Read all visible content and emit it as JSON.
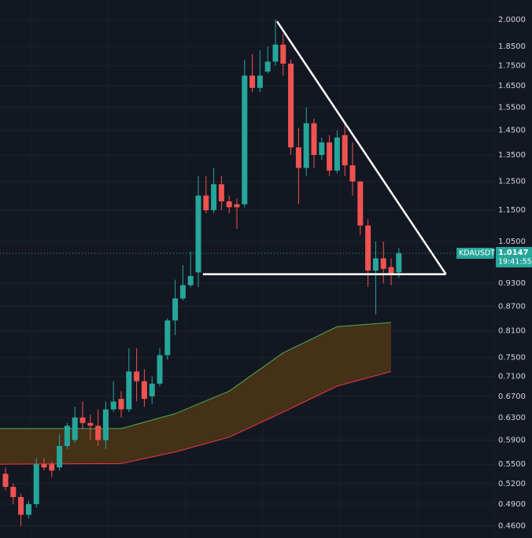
{
  "chart_data": {
    "type": "candlestick",
    "symbol": "KDAUSDT",
    "last_price": 1.0147,
    "countdown": "19:41:55",
    "log_scale": true,
    "grid": true,
    "up_color": "#26a69a",
    "down_color": "#ef5350",
    "ylim": [
      0.444,
      2.117
    ],
    "yticks": [
      {
        "value": 2.0,
        "label": "2.0000"
      },
      {
        "value": 1.85,
        "label": "1.8500"
      },
      {
        "value": 1.75,
        "label": "1.7500"
      },
      {
        "value": 1.65,
        "label": "1.6500"
      },
      {
        "value": 1.55,
        "label": "1.5500"
      },
      {
        "value": 1.45,
        "label": "1.4500"
      },
      {
        "value": 1.35,
        "label": "1.3500"
      },
      {
        "value": 1.25,
        "label": "1.2500"
      },
      {
        "value": 1.15,
        "label": "1.1500"
      },
      {
        "value": 1.05,
        "label": "1.0500"
      },
      {
        "value": 0.93,
        "label": "0.9300"
      },
      {
        "value": 0.87,
        "label": "0.8700"
      },
      {
        "value": 0.81,
        "label": "0.8100"
      },
      {
        "value": 0.75,
        "label": "0.7500"
      },
      {
        "value": 0.71,
        "label": "0.7100"
      },
      {
        "value": 0.67,
        "label": "0.6700"
      },
      {
        "value": 0.63,
        "label": "0.6300"
      },
      {
        "value": 0.59,
        "label": "0.5900"
      },
      {
        "value": 0.55,
        "label": "0.5500"
      },
      {
        "value": 0.52,
        "label": "0.5200"
      },
      {
        "value": 0.49,
        "label": "0.4900"
      },
      {
        "value": 0.46,
        "label": "0.4600"
      }
    ],
    "candles": {
      "open": [
        0.535,
        0.515,
        0.5,
        0.475,
        0.49,
        0.55,
        0.55,
        0.545,
        0.58,
        0.59,
        0.63,
        0.62,
        0.615,
        0.59,
        0.645,
        0.665,
        0.645,
        0.72,
        0.7,
        0.67,
        0.695,
        0.755,
        0.835,
        0.89,
        0.925,
        0.96,
        1.2,
        1.15,
        1.24,
        1.18,
        1.17,
        1.17,
        1.7,
        1.64,
        1.72,
        1.77,
        1.86,
        1.76,
        1.38,
        1.3,
        1.48,
        1.35,
        1.4,
        1.29,
        1.43,
        1.31,
        1.25,
        1.1,
        0.965,
        1.0,
        0.975,
        0.96
      ],
      "high": [
        0.545,
        0.52,
        0.505,
        0.495,
        0.56,
        0.56,
        0.555,
        0.6,
        0.62,
        0.65,
        0.66,
        0.635,
        0.645,
        0.66,
        0.7,
        0.68,
        0.77,
        0.77,
        0.725,
        0.71,
        0.77,
        0.84,
        0.94,
        0.98,
        1.02,
        1.27,
        1.27,
        1.3,
        1.27,
        1.2,
        1.19,
        1.78,
        1.81,
        1.83,
        1.85,
        2.0,
        1.92,
        1.78,
        1.46,
        1.55,
        1.5,
        1.42,
        1.43,
        1.45,
        1.48,
        1.4,
        1.25,
        1.12,
        1.05,
        1.05,
        1.0,
        1.03
      ],
      "low": [
        0.51,
        0.49,
        0.46,
        0.47,
        0.485,
        0.54,
        0.53,
        0.54,
        0.575,
        0.585,
        0.61,
        0.59,
        0.58,
        0.575,
        0.64,
        0.63,
        0.64,
        0.66,
        0.65,
        0.655,
        0.69,
        0.745,
        0.8,
        0.885,
        0.92,
        0.92,
        1.14,
        1.14,
        1.15,
        1.14,
        1.09,
        1.16,
        1.62,
        1.62,
        1.71,
        1.75,
        1.7,
        1.35,
        1.17,
        1.27,
        1.3,
        1.33,
        1.27,
        1.28,
        1.27,
        1.2,
        1.07,
        0.92,
        0.85,
        0.93,
        0.925,
        0.945
      ],
      "close": [
        0.515,
        0.5,
        0.475,
        0.49,
        0.55,
        0.545,
        0.54,
        0.58,
        0.615,
        0.63,
        0.62,
        0.615,
        0.59,
        0.645,
        0.66,
        0.645,
        0.72,
        0.7,
        0.665,
        0.695,
        0.755,
        0.835,
        0.89,
        0.925,
        0.95,
        1.2,
        1.15,
        1.24,
        1.18,
        1.16,
        1.16,
        1.7,
        1.64,
        1.7,
        1.77,
        1.86,
        1.76,
        1.38,
        1.3,
        1.48,
        1.35,
        1.4,
        1.29,
        1.42,
        1.31,
        1.25,
        1.1,
        0.965,
        1.0,
        0.97,
        0.955,
        1.015
      ]
    },
    "cloud": {
      "x": [
        -1,
        15,
        22,
        29,
        36,
        43,
        50
      ],
      "upper": [
        0.61,
        0.61,
        0.637,
        0.68,
        0.76,
        0.82,
        0.83
      ],
      "lower": [
        0.55,
        0.551,
        0.57,
        0.595,
        0.64,
        0.69,
        0.72
      ],
      "upper_color": "#4caf50",
      "lower_color": "#f23645",
      "fill": "#4a3417"
    },
    "trendlines": [
      {
        "x": [
          35.2,
          57.1
        ],
        "y": [
          1.99,
          0.955
        ],
        "color": "#ffffff"
      },
      {
        "x": [
          25.6,
          57.1
        ],
        "y": [
          0.955,
          0.955
        ],
        "color": "#ffffff"
      }
    ]
  }
}
